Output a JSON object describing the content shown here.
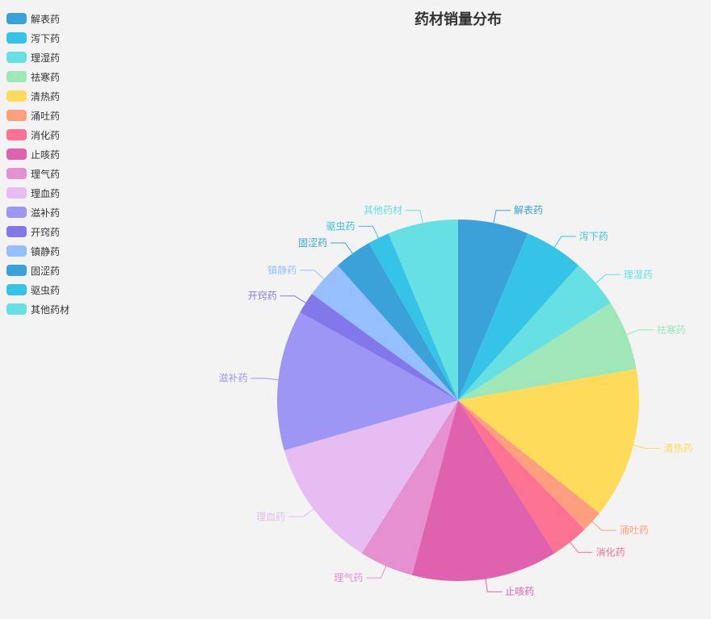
{
  "chart_data": {
    "type": "pie",
    "title": "药材销量分布",
    "legend_position": "top-left",
    "slices": [
      {
        "label": "解表药",
        "value": 6.5,
        "color": "#3ba1d9"
      },
      {
        "label": "泻下药",
        "value": 5.5,
        "color": "#36c3e8"
      },
      {
        "label": "理湿药",
        "value": 4.5,
        "color": "#67e0e3"
      },
      {
        "label": "祛寒药",
        "value": 6.5,
        "color": "#9fe6b8"
      },
      {
        "label": "清热药",
        "value": 14.0,
        "color": "#ffdb5c"
      },
      {
        "label": "涌吐药",
        "value": 2.0,
        "color": "#ff9f7f"
      },
      {
        "label": "消化药",
        "value": 3.5,
        "color": "#fb7293"
      },
      {
        "label": "止咳药",
        "value": 13.5,
        "color": "#e062ae"
      },
      {
        "label": "理气药",
        "value": 5.0,
        "color": "#e690d1"
      },
      {
        "label": "理血药",
        "value": 12.0,
        "color": "#e7bcf3"
      },
      {
        "label": "滋补药",
        "value": 13.0,
        "color": "#9d96f5"
      },
      {
        "label": "开窍药",
        "value": 2.0,
        "color": "#8378ea"
      },
      {
        "label": "镇静药",
        "value": 3.5,
        "color": "#96bfff"
      },
      {
        "label": "固涩药",
        "value": 3.5,
        "color": "#3ba1d9"
      },
      {
        "label": "驱虫药",
        "value": 2.0,
        "color": "#36c3e8"
      },
      {
        "label": "其他药材",
        "value": 6.5,
        "color": "#67e0e3"
      }
    ]
  }
}
